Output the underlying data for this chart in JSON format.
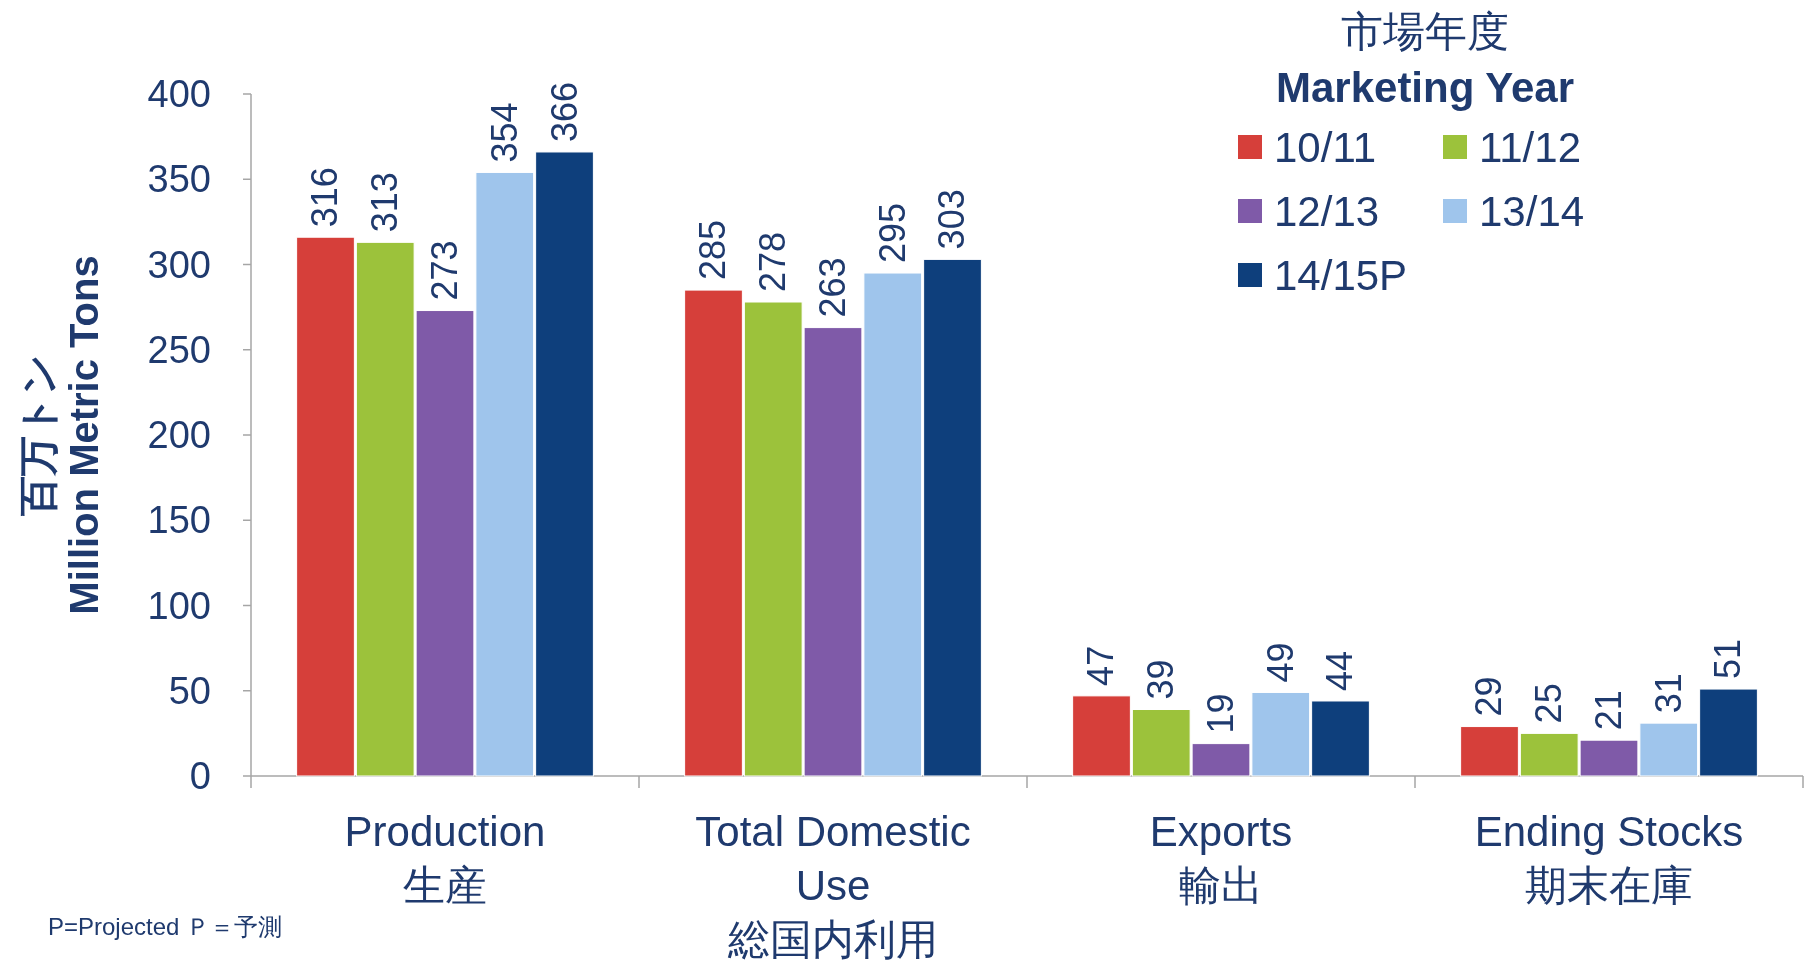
{
  "chart_data": {
    "type": "bar",
    "categories": [
      "Production\n生産",
      "Total Domestic\nUse\n総国内利用",
      "Exports\n輸出",
      "Ending Stocks\n期末在庫"
    ],
    "series": [
      {
        "name": "10/11",
        "color": "#d63f3a",
        "values": [
          316,
          285,
          47,
          29
        ]
      },
      {
        "name": "11/12",
        "color": "#9cc23b",
        "values": [
          313,
          278,
          39,
          25
        ]
      },
      {
        "name": "12/13",
        "color": "#7f5aa8",
        "values": [
          273,
          263,
          19,
          21
        ]
      },
      {
        "name": "13/14",
        "color": "#9fc5ec",
        "values": [
          354,
          295,
          49,
          31
        ]
      },
      {
        "name": "14/15P",
        "color": "#0e3f7c",
        "values": [
          366,
          303,
          44,
          51
        ]
      }
    ],
    "ylabel": "百万トン\nMillion Metric Tons",
    "legend_title": "市場年度\nMarketing Year",
    "legend": "top right",
    "ylim": [
      0,
      400
    ],
    "yticks": [
      0,
      50,
      100,
      150,
      200,
      250,
      300,
      350,
      400
    ],
    "data_labels": true,
    "grid": false,
    "annotations": [
      "P=Projected Ｐ＝予測"
    ]
  }
}
